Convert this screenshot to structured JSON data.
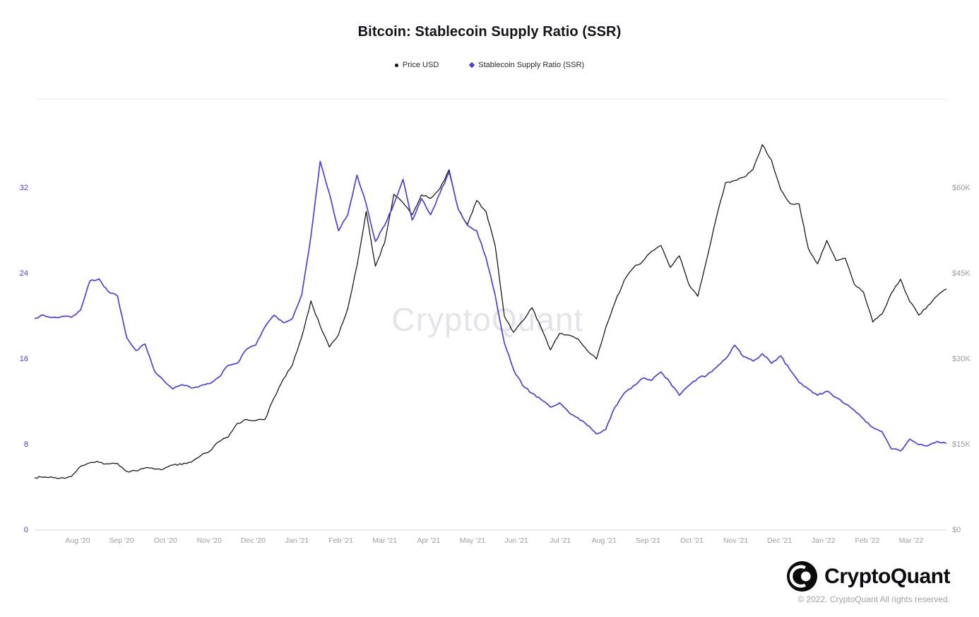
{
  "title": "Bitcoin: Stablecoin Supply Ratio (SSR)",
  "watermark": "CryptoQuant",
  "legend": [
    {
      "label": "Price USD",
      "color": "#111111",
      "marker": "dot"
    },
    {
      "label": "Stablecoin Supply Ratio (SSR)",
      "color": "#4b42cf",
      "marker": "diamond"
    }
  ],
  "footer": {
    "brand": "CryptoQuant",
    "copyright": "© 2022. CryptoQuant All rights reserved."
  },
  "chart_data": {
    "type": "line",
    "title": "Bitcoin: Stablecoin Supply Ratio (SSR)",
    "grid": "top-and-bottom-lines-only",
    "legend_position": "top-center",
    "x_tick_labels": [
      "Aug '20",
      "Sep '20",
      "Oct '20",
      "Nov '20",
      "Dec '20",
      "Jan '21",
      "Feb '21",
      "Mar '21",
      "Apr '21",
      "May '21",
      "Jun '21",
      "Jul '21",
      "Aug '21",
      "Sep '21",
      "Oct '21",
      "Nov '21",
      "Dec '21",
      "Jan '22",
      "Feb '22",
      "Mar '22"
    ],
    "y_axis_left": {
      "name": "Stablecoin Supply Ratio (SSR)",
      "ticks": [
        0,
        8,
        16,
        24,
        32
      ],
      "range": [
        0,
        40.33
      ],
      "color": "#4b42cf"
    },
    "y_axis_right": {
      "name": "Price USD",
      "ticks": [
        "$0",
        "$15K",
        "$30K",
        "$45K",
        "$60K"
      ],
      "tick_values": [
        0,
        15,
        30,
        45,
        60
      ],
      "range": [
        0,
        75.62
      ],
      "unit": "USD thousands",
      "color": "#9aa0a6"
    },
    "series": [
      {
        "name": "Price USD",
        "axis": "right",
        "color": "#111111",
        "unit": "USD thousands",
        "values": [
          9.2,
          9.3,
          9.2,
          9.2,
          9.4,
          11.2,
          11.8,
          11.9,
          11.6,
          11.7,
          10.3,
          10.4,
          10.9,
          10.7,
          10.7,
          11.4,
          11.5,
          11.9,
          13.0,
          13.8,
          15.5,
          16.3,
          18.7,
          19.4,
          19.2,
          19.4,
          23.2,
          26.5,
          29.0,
          33.9,
          40.2,
          35.8,
          32.1,
          34.3,
          38.9,
          46.4,
          55.9,
          46.3,
          50.4,
          58.9,
          57.4,
          55.3,
          58.8,
          58.2,
          59.9,
          63.2,
          56.2,
          53.6,
          57.8,
          55.9,
          49.9,
          37.5,
          34.7,
          36.7,
          39.0,
          35.5,
          31.6,
          34.5,
          34.2,
          33.5,
          31.5,
          30.0,
          35.5,
          39.9,
          43.8,
          46.0,
          47.1,
          48.9,
          49.9,
          46.1,
          48.1,
          43.2,
          41.0,
          47.7,
          54.7,
          60.9,
          61.3,
          61.9,
          63.3,
          67.6,
          64.9,
          59.7,
          57.3,
          57.2,
          49.4,
          46.7,
          50.8,
          47.3,
          47.7,
          43.1,
          41.7,
          36.5,
          37.9,
          41.5,
          44.0,
          40.1,
          37.7,
          39.4,
          41.1,
          42.3
        ]
      },
      {
        "name": "Stablecoin Supply Ratio (SSR)",
        "axis": "left",
        "color": "#4b42cf",
        "unit": "ratio",
        "values": [
          19.8,
          20.1,
          19.9,
          20.0,
          19.9,
          20.6,
          23.3,
          23.5,
          22.3,
          21.9,
          18.0,
          16.8,
          17.4,
          14.9,
          14.0,
          13.2,
          13.6,
          13.3,
          13.5,
          13.7,
          14.3,
          15.4,
          15.6,
          16.9,
          17.3,
          19.0,
          20.1,
          19.4,
          19.8,
          22.0,
          27.5,
          34.5,
          31.5,
          28.0,
          29.5,
          33.2,
          30.5,
          27.0,
          28.5,
          30.5,
          32.8,
          29.0,
          31.0,
          29.5,
          31.5,
          33.5,
          30.0,
          28.5,
          28.0,
          25.5,
          22.0,
          17.5,
          15.0,
          13.5,
          12.8,
          12.2,
          11.5,
          11.9,
          11.0,
          10.5,
          9.8,
          9.0,
          9.4,
          11.5,
          12.8,
          13.5,
          14.2,
          14.0,
          14.8,
          13.8,
          12.6,
          13.5,
          14.2,
          14.5,
          15.2,
          16.0,
          17.3,
          16.2,
          15.8,
          16.5,
          15.6,
          16.3,
          15.0,
          13.8,
          13.2,
          12.6,
          13.0,
          12.4,
          11.8,
          11.2,
          10.4,
          9.6,
          9.2,
          7.6,
          7.4,
          8.5,
          8.0,
          7.9,
          8.3,
          8.1
        ]
      }
    ]
  }
}
